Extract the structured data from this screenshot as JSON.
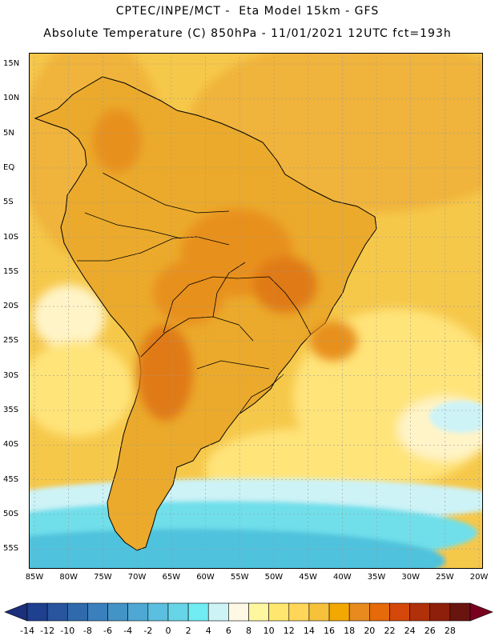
{
  "header": {
    "line1": "CPTEC/INPE/MCT -  Eta Model 15km - GFS",
    "line2": "Absolute Temperature (C) 850hPa - 11/01/2021 12UTC fct=193h"
  },
  "lat_labels": [
    "15N",
    "10N",
    "5N",
    "EQ",
    "5S",
    "10S",
    "15S",
    "20S",
    "25S",
    "30S",
    "35S",
    "40S",
    "45S",
    "50S",
    "55S"
  ],
  "lon_labels": [
    "85W",
    "80W",
    "75W",
    "70W",
    "65W",
    "60W",
    "55W",
    "50W",
    "45W",
    "40W",
    "35W",
    "30W",
    "25W",
    "20W"
  ],
  "colorbar": {
    "labels": [
      "-14",
      "-12",
      "-10",
      "-8",
      "-6",
      "-4",
      "-2",
      "0",
      "2",
      "4",
      "6",
      "8",
      "10",
      "12",
      "14",
      "16",
      "18",
      "20",
      "22",
      "24",
      "26",
      "28"
    ],
    "colors": [
      "#1f3f8f",
      "#28559e",
      "#2f6aad",
      "#3a80bd",
      "#4393c6",
      "#4fa8d3",
      "#5bbfdf",
      "#66d5e8",
      "#70ecf2",
      "#cdf3f7",
      "#fff8e4",
      "#fff7a0",
      "#ffe66e",
      "#ffd65a",
      "#f6c23c",
      "#f2a800",
      "#e88a1e",
      "#e46a0a",
      "#d4480a",
      "#b0300a",
      "#8e1f0a",
      "#6a1410"
    ],
    "low_color": "#1c2f7a",
    "high_color": "#7a0020"
  },
  "map_colors": {
    "ocean_warm": "#f0b33a",
    "ocean_mid": "#f6c84a",
    "ocean_cool": "#ffe47a",
    "ocean_pale": "#fff4c8",
    "cold_1": "#cdf3f7",
    "cold_2": "#70dfea",
    "cold_3": "#4fc2dd",
    "land_base": "#ebaa2c",
    "land_hot": "#e8901f",
    "land_hotter": "#e07a12",
    "outline": "#000000",
    "grid": "#9a9a9a"
  }
}
